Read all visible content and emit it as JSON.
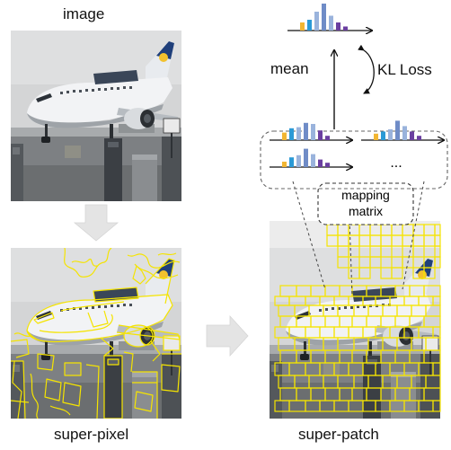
{
  "labels": {
    "image": "image",
    "super_pixel": "super-pixel",
    "super_patch": "super-patch",
    "mean": "mean",
    "kl_loss": "KL Loss",
    "mapping_line1": "mapping",
    "mapping_line2": "matrix",
    "ellipsis": "..."
  },
  "histogram_colors": [
    "#f2b632",
    "#2b9ad6",
    "#9ab3dc",
    "#6f8cc7",
    "#6b3fa0"
  ],
  "histograms": {
    "mean": [
      0.3,
      0.4,
      0.7,
      1.0,
      0.55,
      0.3,
      0.15
    ],
    "patch_a": [
      0.35,
      0.55,
      0.6,
      0.8,
      0.75,
      0.45,
      0.2
    ],
    "patch_b": [
      0.3,
      0.4,
      0.5,
      0.9,
      0.65,
      0.4,
      0.2
    ],
    "patch_c": [
      0.25,
      0.45,
      0.55,
      0.85,
      0.6,
      0.35,
      0.2
    ]
  },
  "colors": {
    "grid_yellow": "#f5e400",
    "sky": "#d2d3d4",
    "fuselage": "#f2f3f5",
    "arrow_gray": "#e4e4e4",
    "dashed_border": "#555555"
  }
}
